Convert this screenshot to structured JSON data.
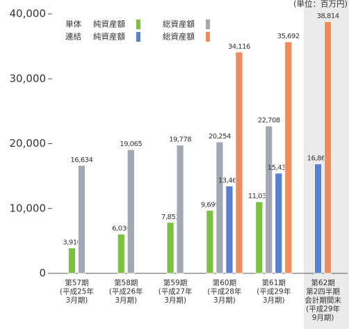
{
  "chart_data": {
    "type": "bar",
    "unit_label": "(単位：百万円)",
    "categories": [
      "第57期\n(平成25年\n3月期)",
      "第58期\n(平成26年\n3月期)",
      "第59期\n(平成27年\n3月期)",
      "第60期\n(平成28年\n3月期)",
      "第61期\n(平成29年\n3月期)",
      "第62期\n第2四半期\n会計期間末\n(平成29年\n9月期)"
    ],
    "legend_groups": [
      "単体",
      "連結"
    ],
    "series": [
      {
        "name": "純資産額",
        "color": "#7cc142",
        "values": [
          3910,
          6036,
          7852,
          9699,
          11035,
          null
        ],
        "value_labels": [
          "3,910",
          "6,036",
          "7,852",
          "9,699",
          "11,035",
          null
        ]
      },
      {
        "name": "総資産額",
        "color": "#a3a7b3",
        "values": [
          16634,
          19065,
          19778,
          20254,
          22708,
          null
        ],
        "value_labels": [
          "16,634",
          "19,065",
          "19,778",
          "20,254",
          "22,708",
          null
        ]
      },
      {
        "name": "純資産額",
        "color": "#5a80d2",
        "values": [
          null,
          null,
          null,
          13462,
          15436,
          16867
        ],
        "value_labels": [
          null,
          null,
          null,
          "13,462",
          "15,436",
          "16,867"
        ]
      },
      {
        "name": "総資産額",
        "color": "#f08b5e",
        "values": [
          null,
          null,
          null,
          34116,
          35692,
          38814
        ],
        "value_labels": [
          null,
          null,
          null,
          "34,116",
          "35,692",
          "38,814"
        ]
      }
    ],
    "ylim": [
      0,
      40000
    ],
    "yticks": [
      {
        "value": 0,
        "label": "0"
      },
      {
        "value": 10000,
        "label": "10,000"
      },
      {
        "value": 20000,
        "label": "20,000"
      },
      {
        "value": 30000,
        "label": "30,000"
      },
      {
        "value": 40000,
        "label": "40,000"
      }
    ]
  }
}
